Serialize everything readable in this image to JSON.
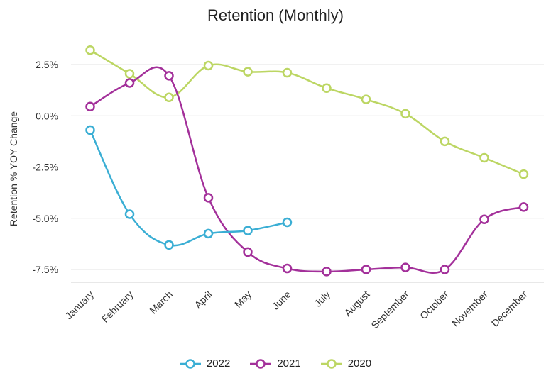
{
  "chart_data": {
    "type": "line",
    "title": "Retention (Monthly)",
    "xlabel": "",
    "ylabel": "Retention % YOY Change",
    "categories": [
      "January",
      "February",
      "March",
      "April",
      "May",
      "June",
      "July",
      "August",
      "September",
      "October",
      "November",
      "December"
    ],
    "ylim": [
      -8.25,
      3.75
    ],
    "yticks": [
      2.5,
      0.0,
      -2.5,
      -5.0,
      -7.5
    ],
    "ytick_labels": [
      "2.5%",
      "0.0%",
      "-2.5%",
      "-5.0%",
      "-7.5%"
    ],
    "grid": true,
    "legend_position": "bottom",
    "series": [
      {
        "name": "2022",
        "color": "#3aaed4",
        "values": [
          -0.7,
          -4.8,
          -6.3,
          -5.75,
          -5.6,
          -5.2,
          null,
          null,
          null,
          null,
          null,
          null
        ]
      },
      {
        "name": "2021",
        "color": "#a3309a",
        "values": [
          0.45,
          1.6,
          1.95,
          -4.0,
          -6.65,
          -7.45,
          -7.6,
          -7.5,
          -7.4,
          -7.5,
          -5.05,
          -4.45
        ]
      },
      {
        "name": "2020",
        "color": "#bcd663",
        "values": [
          3.2,
          2.05,
          0.9,
          2.45,
          2.15,
          2.1,
          1.35,
          0.8,
          0.1,
          -1.25,
          -2.05,
          -2.85
        ]
      }
    ]
  }
}
